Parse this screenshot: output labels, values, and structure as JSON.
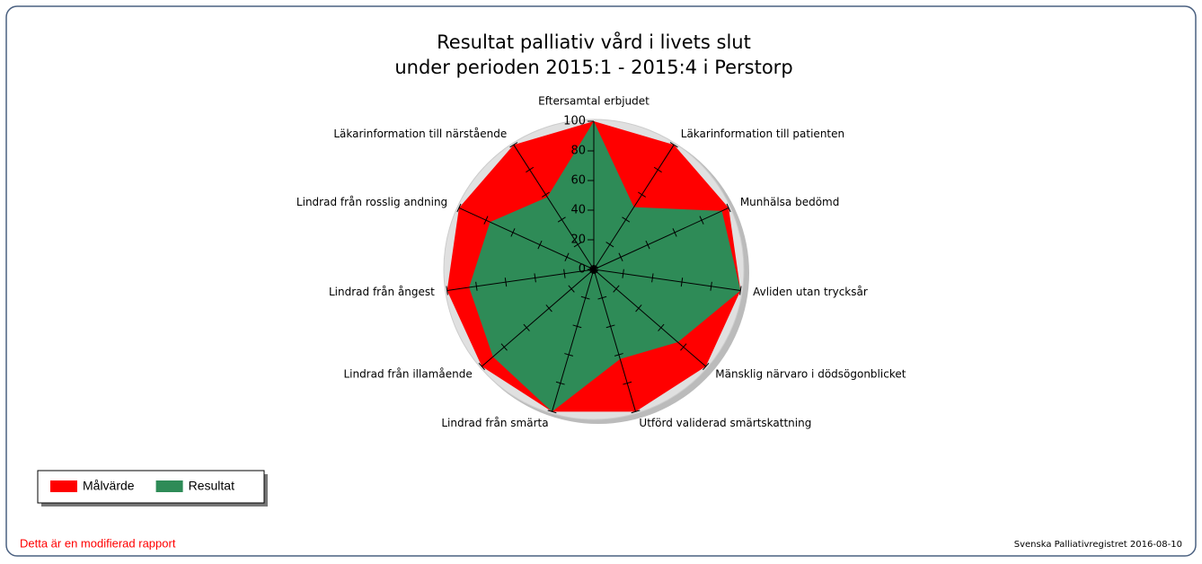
{
  "chart_data": {
    "type": "radar",
    "title": "Resultat palliativ vård i livets slut",
    "subtitle": "under perioden 2015:1 - 2015:4 i Perstorp",
    "categories": [
      "Eftersamtal erbjudet",
      "Läkarinformation till patienten",
      "Munhälsa bedömd",
      "Avliden utan trycksår",
      "Mänsklig närvaro i dödsögonblicket",
      "Utförd validerad smärtskattning",
      "Lindrad från smärta",
      "Lindrad från illamående",
      "Lindrad från ångest",
      "Lindrad från rosslig andning",
      "Läkarinformation till närstående"
    ],
    "series": [
      {
        "name": "Målvärde",
        "color": "#ff0000",
        "values": [
          100,
          100,
          100,
          100,
          100,
          100,
          100,
          100,
          100,
          100,
          100
        ]
      },
      {
        "name": "Resultat",
        "color": "#2e8b57",
        "values": [
          100,
          50,
          95,
          100,
          75,
          63,
          100,
          90,
          85,
          77,
          58
        ]
      }
    ],
    "ylim": [
      0,
      100
    ],
    "yticks": [
      0,
      20,
      40,
      60,
      80,
      100
    ],
    "note": "Detta är en modifierad rapport",
    "source": "Svenska Palliativregistret 2016-08-10"
  }
}
